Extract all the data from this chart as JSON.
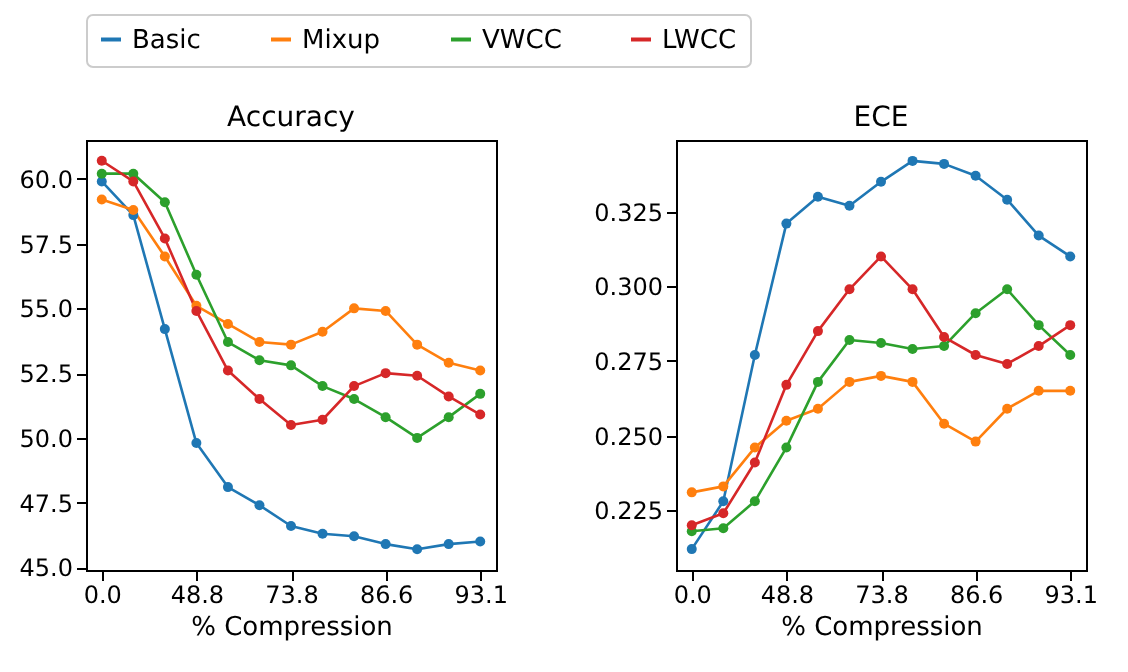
{
  "chart_data": [
    {
      "type": "line",
      "title": "Accuracy",
      "xlabel": "% Compression",
      "categories": [
        "0.0",
        null,
        null,
        "48.8",
        null,
        null,
        "73.8",
        null,
        null,
        "86.6",
        null,
        null,
        "93.1"
      ],
      "ylim": [
        44.9,
        61.5
      ],
      "yticks": [
        {
          "value": 45,
          "label": "45.0"
        },
        47.5,
        {
          "value": 50,
          "label": "50.0"
        },
        52.5,
        {
          "value": 55,
          "label": "55.0"
        },
        57.5,
        {
          "value": 60,
          "label": "60.0"
        }
      ],
      "marker": "circle",
      "line_style": "solid",
      "legend": "top",
      "grid": false,
      "series": [
        {
          "name": "Basic",
          "color": "#1f77b4",
          "values": [
            59.9,
            58.6,
            54.2,
            49.8,
            48.1,
            47.4,
            46.6,
            46.3,
            46.2,
            45.9,
            45.7,
            45.9,
            46.0
          ]
        },
        {
          "name": "Mixup",
          "color": "#ff7f0e",
          "values": [
            59.2,
            58.8,
            57.0,
            55.1,
            54.4,
            53.7,
            53.6,
            54.1,
            55.0,
            54.9,
            53.6,
            52.9,
            52.6
          ]
        },
        {
          "name": "VWCC",
          "color": "#2ca02c",
          "values": [
            60.2,
            60.2,
            59.1,
            56.3,
            53.7,
            53.0,
            52.8,
            52.0,
            51.5,
            50.8,
            50.0,
            50.8,
            51.7
          ]
        },
        {
          "name": "LWCC",
          "color": "#d62728",
          "values": [
            60.7,
            59.9,
            57.7,
            54.9,
            52.6,
            51.5,
            50.5,
            50.7,
            52.0,
            52.5,
            52.4,
            51.6,
            50.9
          ]
        }
      ]
    },
    {
      "type": "line",
      "title": "ECE",
      "xlabel": "% Compression",
      "categories": [
        "0.0",
        null,
        null,
        "48.8",
        null,
        null,
        "73.8",
        null,
        null,
        "86.6",
        null,
        null,
        "93.1"
      ],
      "ylim": [
        0.205,
        0.349
      ],
      "yticks": [
        {
          "value": 0.225,
          "label": "0.225"
        },
        {
          "value": 0.25,
          "label": "0.250"
        },
        {
          "value": 0.275,
          "label": "0.275"
        },
        {
          "value": 0.3,
          "label": "0.300"
        },
        {
          "value": 0.325,
          "label": "0.325"
        }
      ],
      "marker": "circle",
      "line_style": "solid",
      "legend": "top",
      "grid": false,
      "series": [
        {
          "name": "Basic",
          "color": "#1f77b4",
          "values": [
            0.212,
            0.228,
            0.277,
            0.321,
            0.33,
            0.327,
            0.335,
            0.342,
            0.341,
            0.337,
            0.329,
            0.317,
            0.31
          ]
        },
        {
          "name": "Mixup",
          "color": "#ff7f0e",
          "values": [
            0.231,
            0.233,
            0.246,
            0.255,
            0.259,
            0.268,
            0.27,
            0.268,
            0.254,
            0.248,
            0.259,
            0.265,
            0.265
          ]
        },
        {
          "name": "VWCC",
          "color": "#2ca02c",
          "values": [
            0.218,
            0.219,
            0.228,
            0.246,
            0.268,
            0.282,
            0.281,
            0.279,
            0.28,
            0.291,
            0.299,
            0.287,
            0.277
          ]
        },
        {
          "name": "LWCC",
          "color": "#d62728",
          "values": [
            0.22,
            0.224,
            0.241,
            0.267,
            0.285,
            0.299,
            0.31,
            0.299,
            0.283,
            0.277,
            0.274,
            0.28,
            0.287
          ]
        }
      ]
    }
  ]
}
